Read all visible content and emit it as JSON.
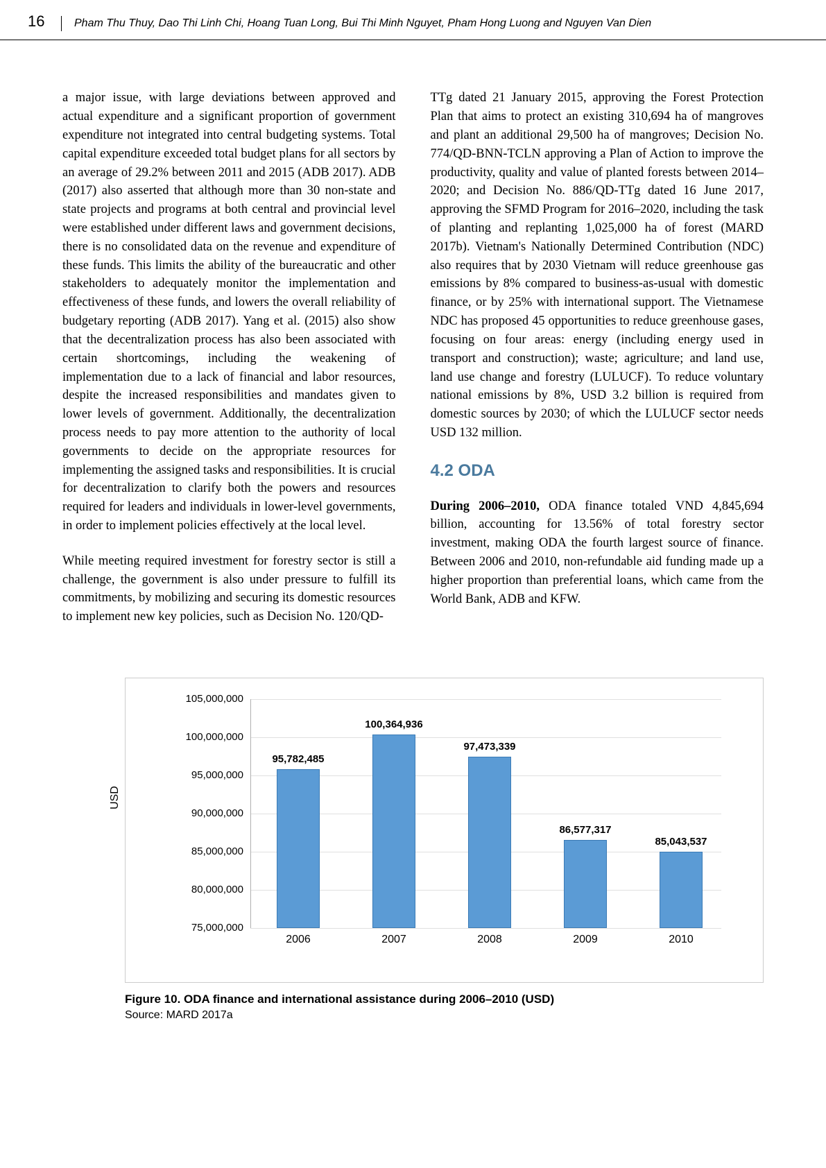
{
  "header": {
    "page_number": "16",
    "authors": "Pham Thu Thuy, Dao Thi Linh Chi, Hoang Tuan Long, Bui Thi Minh Nguyet, Pham Hong Luong and Nguyen Van Dien"
  },
  "left_col": {
    "p1": "a major issue, with large deviations between approved and actual expenditure and a significant proportion of government expenditure not integrated into central budgeting systems. Total capital expenditure exceeded total budget plans for all sectors by an average of 29.2% between 2011 and 2015 (ADB 2017). ADB (2017) also asserted that although more than 30 non-state and state projects and programs at both central and provincial level were established under different laws and government decisions, there is no consolidated data on the revenue and expenditure of these funds. This limits the ability of the bureaucratic and other stakeholders to adequately monitor the implementation and effectiveness of these funds, and lowers the overall reliability of budgetary reporting (ADB 2017). Yang et al. (2015) also show that the decentralization process has also been associated with certain shortcomings, including the weakening of implementation due to a lack of financial and labor resources, despite the increased responsibilities and mandates given to lower levels of government. Additionally, the decentralization process needs to pay more attention to the authority of local governments to decide on the appropriate resources for implementing the assigned tasks and responsibilities. It is crucial for decentralization to clarify both the powers and resources required for leaders and individuals in lower-level governments, in order to implement policies effectively at the local level.",
    "p2": "While meeting required investment for forestry sector is still a challenge, the government is also under pressure to fulfill its commitments, by mobilizing and securing its domestic resources to implement new key policies, such as Decision No. 120/QD-"
  },
  "right_col": {
    "p1": "TTg dated 21 January 2015, approving the Forest Protection Plan that aims to protect an existing 310,694 ha of mangroves and plant an additional 29,500 ha of mangroves; Decision No. 774/QD-BNN-TCLN approving a Plan of Action to improve the productivity, quality and value of planted forests between 2014–2020; and Decision No. 886/QD-TTg dated 16 June 2017, approving the SFMD Program for 2016–2020, including the task of planting and replanting 1,025,000 ha of forest (MARD 2017b). Vietnam's Nationally Determined Contribution (NDC) also requires that by 2030 Vietnam will reduce greenhouse gas emissions by 8% compared to business-as-usual with domestic finance, or by 25% with international support. The Vietnamese NDC has proposed 45 opportunities to reduce greenhouse gases, focusing on four areas: energy (including energy used in transport and construction); waste; agriculture; and land use, land use change and forestry (LULUCF). To reduce voluntary national emissions by 8%, USD 3.2 billion is required from domestic sources by 2030; of which the LULUCF sector needs USD 132 million.",
    "section_head": "4.2 ODA",
    "p2_lead": "During 2006–2010,",
    "p2_rest": " ODA finance totaled VND 4,845,694 billion, accounting for 13.56% of total forestry sector investment, making ODA the fourth largest source of finance. Between 2006 and 2010, non-refundable aid funding made up a higher proportion than preferential loans, which came from the World Bank, ADB and KFW."
  },
  "chart": {
    "type": "bar",
    "ylabel": "USD",
    "categories": [
      "2006",
      "2007",
      "2008",
      "2009",
      "2010"
    ],
    "values": [
      95782485,
      100364936,
      97473339,
      86577317,
      85043537
    ],
    "value_labels": [
      "95,782,485",
      "100,364,936",
      "97,473,339",
      "86,577,317",
      "85,043,537"
    ],
    "ylim": [
      75000000,
      105000000
    ],
    "yticks": [
      "75,000,000",
      "80,000,000",
      "85,000,000",
      "90,000,000",
      "95,000,000",
      "100,000,000",
      "105,000,000"
    ],
    "bar_color": "#5b9bd5",
    "bar_border": "#3a7ab5",
    "grid_color": "#e0e0e0",
    "background_color": "#ffffff",
    "caption": "Figure 10.  ODA finance and international assistance during 2006–2010 (USD)",
    "source": "Source: MARD 2017a"
  }
}
